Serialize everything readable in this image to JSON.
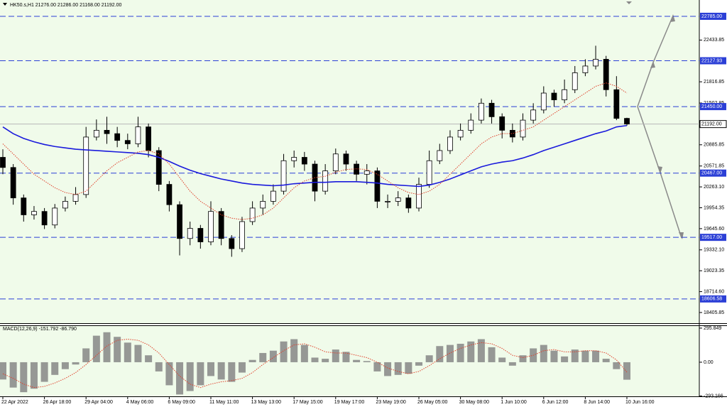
{
  "chart_data": [
    {
      "type": "candlestick",
      "title": "HK50.s,H1  21276.00 21286.00 21168.00 21192.00",
      "categories": [
        "22 Apr 2022",
        null,
        null,
        null,
        "26 Apr 18:00",
        null,
        null,
        null,
        "29 Apr 04:00",
        null,
        null,
        null,
        "4 May 06:00",
        null,
        null,
        null,
        "6 May 09:00",
        null,
        null,
        null,
        "11 May 11:00",
        null,
        null,
        null,
        "13 May 13:00",
        null,
        null,
        null,
        "17 May 15:00",
        null,
        null,
        null,
        "19 May 17:00",
        null,
        null,
        null,
        "23 May 19:00",
        null,
        null,
        null,
        "26 May 05:00",
        null,
        null,
        null,
        "30 May 08:00",
        null,
        null,
        null,
        "1 Jun 10:00",
        null,
        null,
        null,
        "6 Jun 12:00",
        null,
        null,
        null,
        "8 Jun 14:00",
        null,
        null,
        null,
        "10 Jun 16:00"
      ],
      "open": [
        20700,
        20550,
        20100,
        19850,
        19900,
        19700,
        19950,
        20050,
        20150,
        21000,
        21100,
        21050,
        20950,
        20900,
        21150,
        20800,
        20300,
        20000,
        19500,
        19650,
        19450,
        19900,
        19500,
        19350,
        19750,
        19950,
        20050,
        20200,
        20650,
        20700,
        20600,
        20200,
        20500,
        20750,
        20600,
        20450,
        20500,
        20050,
        20050,
        20100,
        19950,
        20300,
        20650,
        20800,
        21000,
        21100,
        21250,
        21500,
        21300,
        21100,
        21000,
        21250,
        21400,
        21650,
        21550,
        21700,
        21950,
        22050,
        22150,
        21700,
        21276
      ],
      "high": [
        20820,
        20600,
        20150,
        19980,
        19950,
        20010,
        20120,
        20260,
        21150,
        21260,
        21300,
        21150,
        21050,
        21300,
        21200,
        20850,
        20350,
        20050,
        19750,
        19700,
        20050,
        19950,
        19550,
        19820,
        20050,
        20150,
        20300,
        20750,
        20800,
        20780,
        20650,
        20600,
        20830,
        20800,
        20650,
        20600,
        20550,
        20150,
        20200,
        20150,
        20400,
        20800,
        20900,
        21100,
        21200,
        21350,
        21570,
        21550,
        21350,
        21200,
        21350,
        21500,
        21750,
        21700,
        21850,
        22050,
        22150,
        22350,
        22200,
        21900,
        21286
      ],
      "low": [
        20450,
        20000,
        19750,
        19780,
        19640,
        19650,
        19900,
        20000,
        20100,
        20950,
        20900,
        20850,
        20820,
        20850,
        20700,
        20200,
        19900,
        19250,
        19400,
        19350,
        19400,
        19400,
        19230,
        19300,
        19700,
        19850,
        20000,
        20150,
        20550,
        20500,
        20050,
        20150,
        20450,
        20500,
        20350,
        20300,
        19950,
        19950,
        19980,
        19880,
        19900,
        20250,
        20600,
        20750,
        20950,
        21050,
        21200,
        21200,
        20980,
        20920,
        20950,
        21200,
        21350,
        21450,
        21500,
        21650,
        21900,
        22000,
        21600,
        21250,
        21168
      ],
      "close": [
        20550,
        20100,
        19850,
        19900,
        19700,
        19950,
        20050,
        20150,
        21000,
        21100,
        21050,
        20950,
        20900,
        21150,
        20800,
        20300,
        20000,
        19500,
        19650,
        19450,
        19900,
        19500,
        19350,
        19750,
        19950,
        20050,
        20200,
        20650,
        20700,
        20600,
        20200,
        20500,
        20750,
        20600,
        20450,
        20500,
        20050,
        20050,
        20100,
        19950,
        20300,
        20650,
        20800,
        21000,
        21100,
        21250,
        21500,
        21300,
        21100,
        21000,
        21250,
        21400,
        21650,
        21550,
        21700,
        21950,
        22050,
        22150,
        21700,
        21276,
        21192
      ],
      "up_color": "#ffffff",
      "down_color": "#000000",
      "ma_lines": [
        {
          "color": "#1a1adc",
          "style": "solid",
          "values": [
            21150,
            21050,
            20980,
            20930,
            20890,
            20860,
            20840,
            20820,
            20810,
            20800,
            20790,
            20780,
            20770,
            20760,
            20740,
            20700,
            20640,
            20570,
            20510,
            20460,
            20420,
            20380,
            20350,
            20320,
            20300,
            20290,
            20280,
            20290,
            20310,
            20320,
            20330,
            20330,
            20340,
            20340,
            20340,
            20330,
            20320,
            20300,
            20290,
            20280,
            20270,
            20290,
            20330,
            20380,
            20440,
            20500,
            20560,
            20600,
            20630,
            20650,
            20690,
            20740,
            20800,
            20850,
            20900,
            20950,
            21000,
            21050,
            21090,
            21150,
            21170
          ]
        },
        {
          "color": "#e0402a",
          "style": "dotted",
          "values": [
            20900,
            20750,
            20600,
            20450,
            20350,
            20250,
            20180,
            20150,
            20200,
            20350,
            20500,
            20620,
            20700,
            20780,
            20800,
            20750,
            20600,
            20400,
            20200,
            20050,
            19950,
            19850,
            19800,
            19780,
            19800,
            19850,
            19950,
            20100,
            20250,
            20350,
            20400,
            20420,
            20480,
            20520,
            20530,
            20520,
            20450,
            20350,
            20250,
            20180,
            20150,
            20200,
            20300,
            20450,
            20600,
            20750,
            20900,
            21000,
            21050,
            21050,
            21100,
            21150,
            21250,
            21350,
            21450,
            21550,
            21650,
            21750,
            21800,
            21750,
            21650
          ]
        }
      ],
      "ylim": [
        18248,
        23026
      ],
      "yticks": [
        22433.85,
        {
          "value": 21816.85,
          "label": "21816.85"
        },
        21502.85,
        20885.85,
        20571.85,
        {
          "value": 20263.1,
          "label": "20263.10"
        },
        19954.35,
        {
          "value": 19645.6,
          "label": "19645.60"
        },
        {
          "value": 19332.1,
          "label": "19332.10"
        },
        19023.35,
        {
          "value": 18714.6,
          "label": "18714.60"
        },
        18405.85
      ],
      "levels": [
        {
          "value": 22785,
          "label": "22785.00"
        },
        {
          "value": 22127.93,
          "label": "22127.93"
        },
        {
          "value": 21450,
          "label": "21450.00"
        },
        {
          "value": 20467,
          "label": "20467.00"
        },
        {
          "value": 19517,
          "label": "19517.00"
        },
        {
          "value": 18606.58,
          "label": "18606.58"
        }
      ],
      "level_color": "#2b3fd6",
      "current_price": {
        "value": 21192,
        "label": "21192.00"
      }
    },
    {
      "type": "macd",
      "title": "MACD(12,26,9) -151.792 -86.790",
      "histogram": [
        -150,
        -220,
        -260,
        -230,
        -170,
        -110,
        -60,
        -20,
        120,
        230,
        260,
        220,
        170,
        150,
        60,
        -80,
        -200,
        -280,
        -250,
        -200,
        -120,
        -150,
        -170,
        -90,
        20,
        80,
        100,
        180,
        200,
        150,
        40,
        30,
        110,
        90,
        20,
        10,
        -80,
        -120,
        -110,
        -100,
        -30,
        60,
        140,
        150,
        160,
        180,
        200,
        130,
        40,
        -30,
        60,
        120,
        150,
        100,
        50,
        110,
        100,
        100,
        30,
        -60,
        -151.792
      ],
      "signal": [
        -100,
        -140,
        -190,
        -220,
        -210,
        -180,
        -140,
        -90,
        -20,
        60,
        140,
        190,
        200,
        190,
        150,
        80,
        -20,
        -120,
        -190,
        -220,
        -190,
        -170,
        -160,
        -140,
        -90,
        -20,
        40,
        100,
        150,
        160,
        130,
        90,
        80,
        80,
        60,
        40,
        0,
        -50,
        -80,
        -100,
        -80,
        -30,
        30,
        80,
        120,
        150,
        170,
        160,
        120,
        60,
        40,
        60,
        100,
        110,
        90,
        90,
        100,
        100,
        80,
        20,
        -86.79
      ],
      "histogram_color": "#808080",
      "signal_color": "#e0402a",
      "ylim": [
        -296,
        320
      ],
      "yticks": [
        295.849,
        {
          "value": 0,
          "label": "0.00"
        },
        -293.166
      ]
    }
  ]
}
